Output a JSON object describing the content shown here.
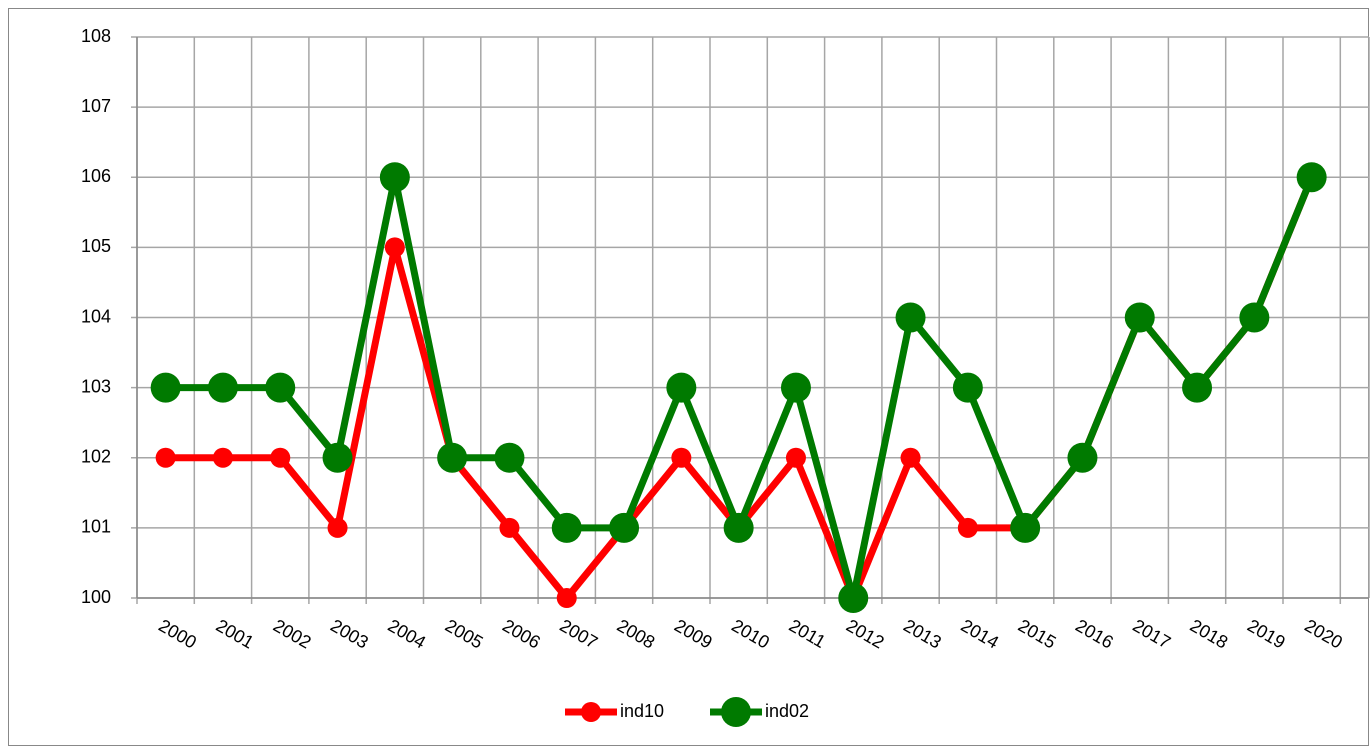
{
  "chart_data": {
    "type": "line",
    "categories": [
      "2000",
      "2001",
      "2002",
      "2003",
      "2004",
      "2005",
      "2006",
      "2007",
      "2008",
      "2009",
      "2010",
      "2011",
      "2012",
      "2013",
      "2014",
      "2015",
      "2016",
      "2017",
      "2018",
      "2019",
      "2020"
    ],
    "series": [
      {
        "name": "ind10",
        "color": "#ff0000",
        "values": [
          102,
          102,
          102,
          101,
          105,
          102,
          101,
          100,
          101,
          102,
          101,
          102,
          100,
          102,
          101,
          101,
          102,
          104,
          103,
          104,
          106
        ]
      },
      {
        "name": "ind02",
        "color": "#007a00",
        "values": [
          103,
          103,
          103,
          102,
          106,
          102,
          102,
          101,
          101,
          103,
          101,
          103,
          100,
          104,
          103,
          101,
          102,
          104,
          103,
          104,
          106
        ]
      }
    ],
    "ylim": [
      100,
      108
    ],
    "yticks": [
      100,
      101,
      102,
      103,
      104,
      105,
      106,
      107,
      108
    ],
    "grid": true,
    "legend": "bottom"
  }
}
